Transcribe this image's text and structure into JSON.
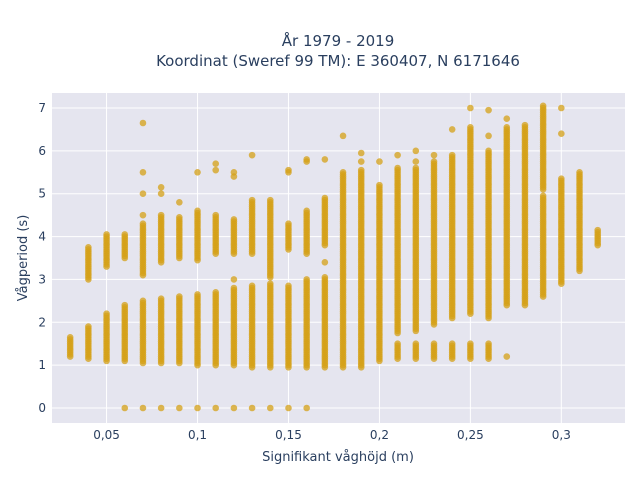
{
  "chart_data": {
    "type": "scatter",
    "title": "År 1979 - 2019",
    "subtitle": "Koordinat (Sweref 99 TM): E 360407, N 6171646",
    "xlabel": "Signifikant våghöjd (m)",
    "ylabel": "Vågperiod (s)",
    "xlim": [
      0.02,
      0.335
    ],
    "ylim": [
      -0.35,
      7.35
    ],
    "x_ticks": [
      0.05,
      0.1,
      0.15,
      0.2,
      0.25,
      0.3
    ],
    "x_tick_labels": [
      "0,05",
      "0,1",
      "0,15",
      "0,2",
      "0,25",
      "0,3"
    ],
    "y_ticks": [
      0,
      1,
      2,
      3,
      4,
      5,
      6,
      7
    ],
    "y_tick_labels": [
      "0",
      "1",
      "2",
      "3",
      "4",
      "5",
      "6",
      "7"
    ],
    "grid": true,
    "marker_color": "#d4a017",
    "plot_background": "#e5e5ef",
    "columns": [
      {
        "x": 0.03,
        "ranges": [
          [
            1.2,
            1.65
          ]
        ]
      },
      {
        "x": 0.04,
        "ranges": [
          [
            1.15,
            1.9
          ],
          [
            3.0,
            3.75
          ]
        ]
      },
      {
        "x": 0.05,
        "ranges": [
          [
            1.1,
            2.2
          ],
          [
            3.3,
            4.05
          ]
        ]
      },
      {
        "x": 0.06,
        "ranges": [
          [
            1.1,
            2.4
          ],
          [
            3.5,
            4.05
          ]
        ],
        "extra": [
          0
        ]
      },
      {
        "x": 0.07,
        "ranges": [
          [
            1.05,
            2.5
          ],
          [
            3.1,
            4.3
          ]
        ],
        "extra": [
          0,
          4.5,
          5.0,
          5.5,
          6.65
        ]
      },
      {
        "x": 0.08,
        "ranges": [
          [
            1.05,
            2.55
          ],
          [
            3.4,
            4.5
          ]
        ],
        "extra": [
          0,
          5.0,
          5.15
        ]
      },
      {
        "x": 0.09,
        "ranges": [
          [
            1.05,
            2.6
          ],
          [
            3.5,
            4.45
          ]
        ],
        "extra": [
          0,
          4.8
        ]
      },
      {
        "x": 0.1,
        "ranges": [
          [
            1.0,
            2.65
          ],
          [
            3.45,
            4.6
          ]
        ],
        "extra": [
          0,
          5.5
        ]
      },
      {
        "x": 0.11,
        "ranges": [
          [
            1.0,
            2.7
          ],
          [
            3.6,
            4.5
          ]
        ],
        "extra": [
          0,
          5.55,
          5.7
        ]
      },
      {
        "x": 0.12,
        "ranges": [
          [
            1.0,
            2.8
          ],
          [
            3.6,
            4.4
          ]
        ],
        "extra": [
          0,
          3.0,
          5.4,
          5.5
        ]
      },
      {
        "x": 0.13,
        "ranges": [
          [
            0.95,
            2.85
          ],
          [
            3.6,
            4.85
          ]
        ],
        "extra": [
          0,
          5.9
        ]
      },
      {
        "x": 0.14,
        "ranges": [
          [
            0.95,
            2.9
          ],
          [
            3.05,
            4.85
          ]
        ],
        "extra": [
          0
        ]
      },
      {
        "x": 0.15,
        "ranges": [
          [
            0.95,
            2.85
          ],
          [
            3.7,
            4.3
          ]
        ],
        "extra": [
          0,
          5.5,
          5.55
        ]
      },
      {
        "x": 0.16,
        "ranges": [
          [
            0.95,
            3.0
          ],
          [
            3.6,
            4.6
          ]
        ],
        "extra": [
          0,
          5.75,
          5.8
        ]
      },
      {
        "x": 0.17,
        "ranges": [
          [
            0.95,
            3.05
          ],
          [
            3.8,
            4.9
          ]
        ],
        "extra": [
          3.4,
          5.8
        ]
      },
      {
        "x": 0.18,
        "ranges": [
          [
            0.95,
            5.5
          ]
        ],
        "extra": [
          6.35
        ]
      },
      {
        "x": 0.19,
        "ranges": [
          [
            0.95,
            5.55
          ]
        ],
        "extra": [
          5.75,
          5.95
        ]
      },
      {
        "x": 0.2,
        "ranges": [
          [
            1.1,
            5.2
          ]
        ],
        "extra": [
          5.75
        ]
      },
      {
        "x": 0.21,
        "ranges": [
          [
            1.15,
            1.5
          ],
          [
            1.75,
            5.6
          ]
        ],
        "extra": [
          5.9
        ]
      },
      {
        "x": 0.22,
        "ranges": [
          [
            1.15,
            1.5
          ],
          [
            1.8,
            5.6
          ]
        ],
        "extra": [
          5.75,
          6.0
        ]
      },
      {
        "x": 0.23,
        "ranges": [
          [
            1.15,
            1.5
          ],
          [
            1.95,
            5.75
          ]
        ],
        "extra": [
          5.9
        ]
      },
      {
        "x": 0.24,
        "ranges": [
          [
            1.15,
            1.5
          ],
          [
            2.1,
            5.9
          ]
        ],
        "extra": [
          6.5
        ]
      },
      {
        "x": 0.25,
        "ranges": [
          [
            1.15,
            1.5
          ],
          [
            2.2,
            6.55
          ]
        ],
        "extra": [
          7.0
        ]
      },
      {
        "x": 0.26,
        "ranges": [
          [
            1.15,
            1.5
          ],
          [
            2.1,
            6.0
          ]
        ],
        "extra": [
          6.35,
          6.95
        ]
      },
      {
        "x": 0.27,
        "ranges": [
          [
            2.4,
            6.55
          ]
        ],
        "extra": [
          1.2,
          6.75
        ]
      },
      {
        "x": 0.28,
        "ranges": [
          [
            2.4,
            6.6
          ]
        ]
      },
      {
        "x": 0.29,
        "ranges": [
          [
            2.6,
            4.95
          ],
          [
            5.1,
            7.05
          ]
        ]
      },
      {
        "x": 0.3,
        "ranges": [
          [
            2.9,
            5.35
          ]
        ],
        "extra": [
          6.4,
          7.0
        ]
      },
      {
        "x": 0.31,
        "ranges": [
          [
            3.2,
            5.5
          ]
        ]
      },
      {
        "x": 0.32,
        "ranges": [
          [
            3.8,
            4.15
          ]
        ]
      }
    ]
  }
}
